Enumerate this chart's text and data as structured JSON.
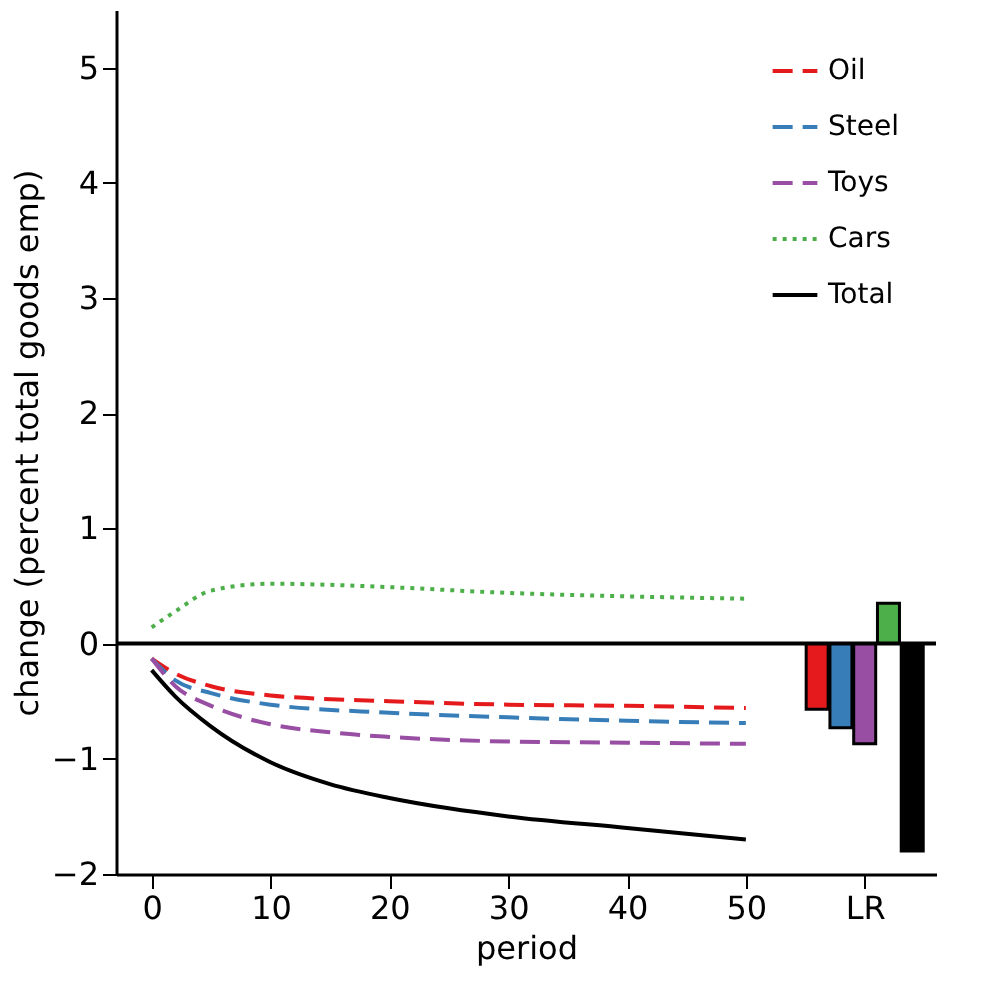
{
  "chart_data": {
    "type": "line",
    "xlabel": "period",
    "ylabel": "change (percent total goods emp)",
    "xlim": [
      -3,
      66
    ],
    "ylim": [
      -2,
      5.5
    ],
    "xticks": [
      0,
      10,
      20,
      30,
      40,
      50,
      {
        "value": 60,
        "label": "LR"
      }
    ],
    "yticks": [
      -2,
      -1,
      0,
      1,
      2,
      3,
      4,
      5
    ],
    "legend": "top right",
    "ref_lines": [
      {
        "axis": "y",
        "value": 0,
        "label": null,
        "color": "#000000",
        "line_style": "solid"
      }
    ],
    "series": [
      {
        "name": "Oil",
        "color": "#e41a1c",
        "line_style": "dashed",
        "x": [
          0,
          2,
          5,
          10,
          20,
          30,
          40,
          50
        ],
        "values": [
          -0.13,
          -0.26,
          -0.37,
          -0.45,
          -0.5,
          -0.53,
          -0.54,
          -0.56
        ]
      },
      {
        "name": "Steel",
        "color": "#377eb8",
        "line_style": "dashed",
        "x": [
          0,
          2,
          5,
          10,
          20,
          30,
          40,
          50
        ],
        "values": [
          -0.13,
          -0.32,
          -0.43,
          -0.53,
          -0.6,
          -0.64,
          -0.67,
          -0.69
        ]
      },
      {
        "name": "Toys",
        "color": "#984ea3",
        "line_style": "dashed",
        "x": [
          0,
          2,
          5,
          10,
          15,
          20,
          30,
          40,
          50
        ],
        "values": [
          -0.13,
          -0.37,
          -0.54,
          -0.7,
          -0.77,
          -0.81,
          -0.85,
          -0.86,
          -0.87
        ]
      },
      {
        "name": "Cars",
        "color": "#4daf4a",
        "line_style": "dotted",
        "x": [
          0,
          2,
          5,
          10,
          15,
          20,
          30,
          40,
          50
        ],
        "values": [
          0.14,
          0.28,
          0.46,
          0.52,
          0.51,
          0.49,
          0.44,
          0.41,
          0.39
        ]
      },
      {
        "name": "Total",
        "color": "#000000",
        "line_style": "solid",
        "x": [
          0,
          2,
          5,
          10,
          15,
          20,
          25,
          30,
          40,
          50
        ],
        "values": [
          -0.23,
          -0.46,
          -0.72,
          -1.03,
          -1.22,
          -1.34,
          -1.43,
          -1.5,
          -1.6,
          -1.7
        ]
      },
      {
        "type": "bar",
        "x": [
          56,
          58,
          60,
          62,
          64
        ],
        "values": [
          -0.57,
          -0.73,
          -0.87,
          0.35,
          -1.8
        ],
        "colors": [
          "#e41a1c",
          "#377eb8",
          "#984ea3",
          "#4daf4a",
          "#000000"
        ]
      }
    ]
  }
}
